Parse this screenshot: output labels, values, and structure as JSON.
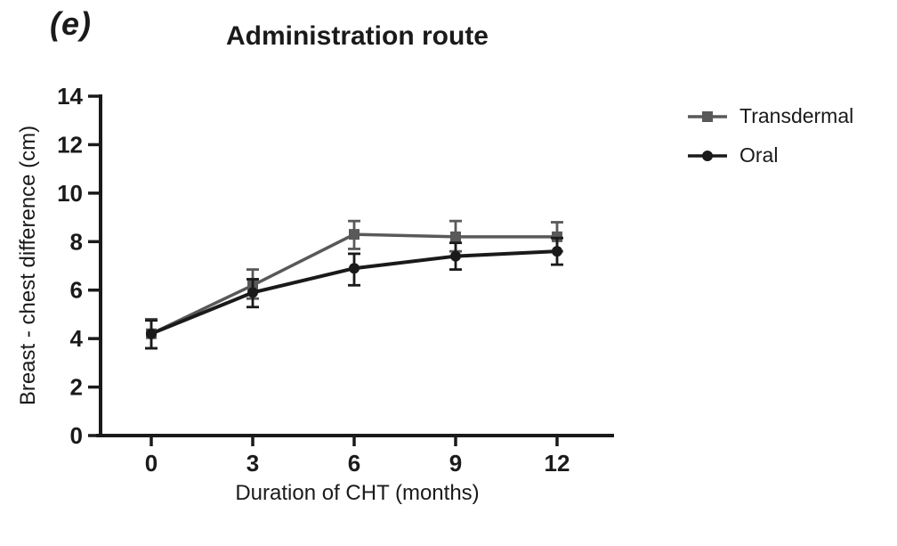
{
  "panel_label": "(e)",
  "title": "Administration route",
  "colors": {
    "transdermal": "#595959",
    "oral": "#1a1a1a",
    "axis": "#1a1a1a"
  },
  "legend": {
    "items": [
      {
        "label": "Transdermal",
        "series": "transdermal",
        "marker": "square"
      },
      {
        "label": "Oral",
        "series": "oral",
        "marker": "circle"
      }
    ]
  },
  "chart_data": {
    "type": "line",
    "title": "Administration route",
    "xlabel": "Duration of CHT (months)",
    "ylabel": "Breast - chest difference (cm)",
    "x": [
      0,
      3,
      6,
      9,
      12
    ],
    "x_ticks": [
      0,
      3,
      6,
      9,
      12
    ],
    "y_ticks": [
      0,
      2,
      4,
      6,
      8,
      10,
      12,
      14
    ],
    "xlim": [
      0,
      12
    ],
    "ylim": [
      0,
      14
    ],
    "grid": false,
    "legend_position": "right",
    "error_bars": true,
    "series": [
      {
        "name": "Transdermal",
        "key": "transdermal",
        "marker": "square",
        "values": [
          4.2,
          6.2,
          8.3,
          8.2,
          8.2
        ],
        "err_up": [
          0.6,
          0.65,
          0.55,
          0.65,
          0.6
        ],
        "err_down": [
          0.6,
          0.55,
          0.6,
          0.6,
          0.6
        ]
      },
      {
        "name": "Oral",
        "key": "oral",
        "marker": "circle",
        "values": [
          4.2,
          5.9,
          6.9,
          7.4,
          7.6
        ],
        "err_up": [
          0.55,
          0.55,
          0.6,
          0.55,
          0.55
        ],
        "err_down": [
          0.6,
          0.6,
          0.7,
          0.55,
          0.55
        ]
      }
    ]
  }
}
